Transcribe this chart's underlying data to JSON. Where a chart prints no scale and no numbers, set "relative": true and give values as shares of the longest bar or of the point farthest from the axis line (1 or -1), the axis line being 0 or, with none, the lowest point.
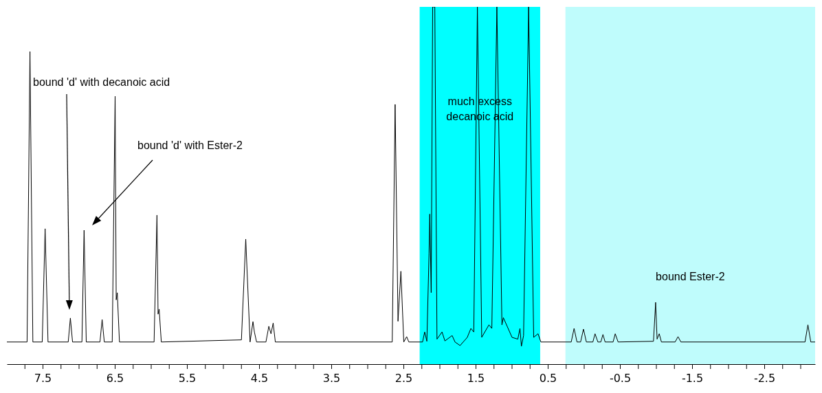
{
  "chart_data": {
    "type": "line",
    "relative": true,
    "grid": false,
    "line_style": "solid",
    "xlim": [
      8.0,
      -3.2
    ],
    "xticks": [
      {
        "value": 7.75,
        "label": null
      },
      7.5,
      {
        "value": 7.25,
        "label": null
      },
      {
        "value": 7.0,
        "label": null
      },
      {
        "value": 6.75,
        "label": null
      },
      6.5,
      {
        "value": 6.25,
        "label": null
      },
      {
        "value": 6.0,
        "label": null
      },
      {
        "value": 5.75,
        "label": null
      },
      5.5,
      {
        "value": 5.25,
        "label": null
      },
      {
        "value": 5.0,
        "label": null
      },
      {
        "value": 4.75,
        "label": null
      },
      4.5,
      {
        "value": 4.25,
        "label": null
      },
      {
        "value": 4.0,
        "label": null
      },
      {
        "value": 3.75,
        "label": null
      },
      3.5,
      {
        "value": 3.25,
        "label": null
      },
      {
        "value": 3.0,
        "label": null
      },
      {
        "value": 2.75,
        "label": null
      },
      2.5,
      {
        "value": 2.25,
        "label": null
      },
      {
        "value": 2.0,
        "label": null
      },
      {
        "value": 1.75,
        "label": null
      },
      1.5,
      {
        "value": 1.25,
        "label": null
      },
      {
        "value": 1.0,
        "label": null
      },
      {
        "value": 0.75,
        "label": null
      },
      0.5,
      {
        "value": 0.25,
        "label": null
      },
      {
        "value": 0.0,
        "label": null
      },
      {
        "value": -0.25,
        "label": null
      },
      -0.5,
      {
        "value": -0.75,
        "label": null
      },
      {
        "value": -1.0,
        "label": null
      },
      {
        "value": -1.25,
        "label": null
      },
      -1.5,
      {
        "value": -1.75,
        "label": null
      },
      {
        "value": -2.0,
        "label": null
      },
      {
        "value": -2.25,
        "label": null
      },
      -2.5,
      {
        "value": -2.75,
        "label": null
      },
      {
        "value": -3.0,
        "label": null
      }
    ],
    "series": [
      {
        "color": "#000000",
        "x": [
          8.0,
          7.72,
          7.68,
          7.64,
          7.51,
          7.47,
          7.43,
          7.15,
          7.12,
          7.09,
          6.96,
          6.93,
          6.9,
          6.71,
          6.68,
          6.65,
          6.54,
          6.5,
          6.485,
          6.47,
          6.44,
          5.96,
          5.92,
          5.905,
          5.89,
          5.86,
          4.75,
          4.69,
          4.63,
          4.59,
          4.57,
          4.54,
          4.41,
          4.37,
          4.34,
          4.31,
          4.28,
          2.66,
          2.62,
          2.58,
          2.54,
          2.5,
          2.46,
          2.43,
          2.24,
          2.21,
          2.18,
          2.15,
          2.14,
          2.12,
          2.1,
          2.07,
          2.04,
          1.97,
          1.93,
          1.83,
          1.79,
          1.72,
          1.62,
          1.57,
          1.53,
          1.48,
          1.42,
          1.32,
          1.28,
          1.21,
          1.14,
          1.12,
          1.0,
          0.92,
          0.89,
          0.87,
          0.84,
          0.77,
          0.7,
          0.64,
          0.6,
          0.18,
          0.14,
          0.1,
          0.05,
          0.01,
          -0.03,
          -0.12,
          -0.15,
          -0.19,
          -0.23,
          -0.26,
          -0.29,
          -0.4,
          -0.43,
          -0.47,
          -0.96,
          -0.99,
          -1.01,
          -1.04,
          -1.07,
          -1.26,
          -1.3,
          -1.34,
          -3.06,
          -3.1,
          -3.14,
          -3.2
        ],
        "values": [
          0.062,
          0.062,
          0.875,
          0.062,
          0.062,
          0.379,
          0.062,
          0.062,
          0.129,
          0.062,
          0.062,
          0.375,
          0.062,
          0.062,
          0.125,
          0.062,
          0.062,
          0.75,
          0.18,
          0.2,
          0.062,
          0.062,
          0.417,
          0.14,
          0.154,
          0.062,
          0.068,
          0.35,
          0.062,
          0.119,
          0.09,
          0.062,
          0.062,
          0.106,
          0.085,
          0.115,
          0.062,
          0.062,
          0.727,
          0.12,
          0.26,
          0.062,
          0.077,
          0.062,
          0.062,
          0.09,
          0.064,
          0.31,
          0.42,
          0.2,
          1,
          1,
          0.07,
          0.09,
          0.065,
          0.08,
          0.062,
          0.052,
          0.075,
          0.1,
          0.09,
          1,
          0.075,
          0.11,
          0.1,
          1,
          0.11,
          0.13,
          0.075,
          0.07,
          0.1,
          0.05,
          0.08,
          1,
          0.075,
          0.085,
          0.062,
          0.062,
          0.1,
          0.062,
          0.062,
          0.098,
          0.062,
          0.062,
          0.085,
          0.062,
          0.062,
          0.083,
          0.062,
          0.062,
          0.085,
          0.062,
          0.064,
          0.173,
          0.07,
          0.085,
          0.062,
          0.062,
          0.077,
          0.062,
          0.062,
          0.11,
          0.062,
          0.062
        ]
      }
    ],
    "bands": [
      {
        "axis": "x",
        "from": 2.28,
        "to": 0.61,
        "label": "much excess decanoic acid",
        "color": "#00ffff"
      },
      {
        "axis": "x",
        "from": 0.26,
        "to": -3.2,
        "label": "bound Ester-2",
        "color": "#bffcfc"
      }
    ],
    "annotations": [
      "bound 'd' with decanoic acid",
      "bound 'd' with Ester-2"
    ]
  }
}
